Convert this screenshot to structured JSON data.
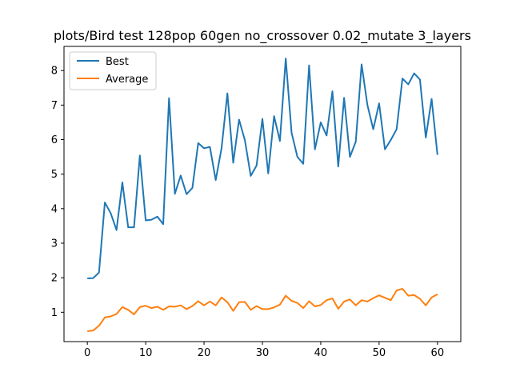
{
  "chart_data": {
    "type": "line",
    "title": "plots/Bird test 128pop 60gen no_crossover 0.02_mutate 3_layers",
    "xlabel": "",
    "ylabel": "",
    "xlim": [
      -4,
      64
    ],
    "ylim": [
      0.15,
      8.7
    ],
    "xticks": [
      0,
      10,
      20,
      30,
      40,
      50,
      60
    ],
    "yticks": [
      1,
      2,
      3,
      4,
      5,
      6,
      7,
      8
    ],
    "grid": false,
    "legend": "upper left",
    "x": [
      0,
      1,
      2,
      3,
      4,
      5,
      6,
      7,
      8,
      9,
      10,
      11,
      12,
      13,
      14,
      15,
      16,
      17,
      18,
      19,
      20,
      21,
      22,
      23,
      24,
      25,
      26,
      27,
      28,
      29,
      30,
      31,
      32,
      33,
      34,
      35,
      36,
      37,
      38,
      39,
      40,
      41,
      42,
      43,
      44,
      45,
      46,
      47,
      48,
      49,
      50,
      51,
      52,
      53,
      54,
      55,
      56,
      57,
      58,
      59,
      60
    ],
    "series": [
      {
        "name": "Best",
        "color": "#1f77b4",
        "values": [
          1.98,
          1.99,
          2.15,
          4.18,
          3.87,
          3.38,
          4.76,
          3.46,
          3.46,
          5.54,
          3.66,
          3.68,
          3.77,
          3.55,
          7.2,
          4.43,
          4.96,
          4.42,
          4.6,
          5.9,
          5.75,
          5.79,
          4.83,
          5.75,
          7.34,
          5.33,
          6.58,
          5.98,
          4.95,
          5.25,
          6.6,
          5.02,
          6.68,
          5.96,
          8.35,
          6.2,
          5.5,
          5.3,
          8.15,
          5.72,
          6.5,
          6.12,
          7.4,
          5.22,
          7.21,
          5.5,
          5.94,
          8.18,
          7.0,
          6.3,
          7.05,
          5.72,
          5.99,
          6.3,
          7.77,
          7.6,
          7.92,
          7.74,
          6.06,
          7.18,
          5.56
        ]
      },
      {
        "name": "Average",
        "color": "#ff7f0e",
        "values": [
          0.45,
          0.47,
          0.61,
          0.85,
          0.88,
          0.95,
          1.15,
          1.07,
          0.94,
          1.15,
          1.19,
          1.12,
          1.16,
          1.07,
          1.17,
          1.16,
          1.2,
          1.09,
          1.18,
          1.32,
          1.2,
          1.31,
          1.2,
          1.43,
          1.29,
          1.04,
          1.29,
          1.3,
          1.07,
          1.18,
          1.09,
          1.09,
          1.14,
          1.22,
          1.48,
          1.33,
          1.27,
          1.12,
          1.32,
          1.17,
          1.21,
          1.35,
          1.4,
          1.1,
          1.31,
          1.37,
          1.2,
          1.35,
          1.31,
          1.41,
          1.49,
          1.42,
          1.35,
          1.63,
          1.68,
          1.48,
          1.5,
          1.39,
          1.2,
          1.43,
          1.52
        ]
      }
    ]
  }
}
